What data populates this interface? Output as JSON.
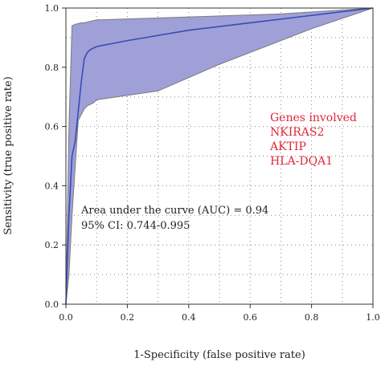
{
  "chart_data": {
    "type": "line",
    "xlabel": "1-Specificity (false positive rate)",
    "ylabel": "Sensitivity (true positive rate)",
    "xlim": [
      0,
      1
    ],
    "ylim": [
      0,
      1
    ],
    "x_ticks": [
      "0.0",
      "0.2",
      "0.4",
      "0.6",
      "0.8",
      "1.0"
    ],
    "y_ticks": [
      "0.0",
      "0.2",
      "0.4",
      "0.6",
      "0.8",
      "1.0"
    ],
    "grid": "dotted",
    "curve": {
      "x": [
        0,
        0.01,
        0.02,
        0.03,
        0.04,
        0.05,
        0.06,
        0.07,
        0.08,
        0.1,
        0.2,
        0.4,
        0.6,
        0.8,
        1.0
      ],
      "y": [
        0,
        0.3,
        0.5,
        0.55,
        0.65,
        0.75,
        0.83,
        0.85,
        0.86,
        0.87,
        0.89,
        0.925,
        0.95,
        0.975,
        1.0
      ]
    },
    "ci_upper": {
      "x": [
        0,
        0.01,
        0.02,
        0.03,
        0.05,
        0.06,
        0.1,
        0.4,
        0.7,
        1.0
      ],
      "y": [
        0,
        0.6,
        0.94,
        0.945,
        0.95,
        0.95,
        0.96,
        0.97,
        0.98,
        1.0
      ]
    },
    "ci_lower": {
      "x": [
        1.0,
        0.8,
        0.5,
        0.3,
        0.1,
        0.09,
        0.08,
        0.07,
        0.06,
        0.04,
        0.02,
        0.01,
        0
      ],
      "y": [
        1.0,
        0.93,
        0.81,
        0.72,
        0.69,
        0.68,
        0.675,
        0.67,
        0.66,
        0.62,
        0.3,
        0.1,
        0
      ]
    },
    "annotations": {
      "auc": "Area under the curve (AUC) = 0.94",
      "ci": "95% CI: 0.744-0.995"
    },
    "genes": {
      "title": "Genes involved",
      "items": [
        "NKIRAS2",
        "AKTIP",
        "HLA-DQA1"
      ]
    },
    "colors": {
      "curve": "#3a4bb5",
      "band_fill": "#9fa0d8",
      "band_edge": "#7a7a7a",
      "genes_text": "#e0283a",
      "grid": "#888888"
    }
  }
}
